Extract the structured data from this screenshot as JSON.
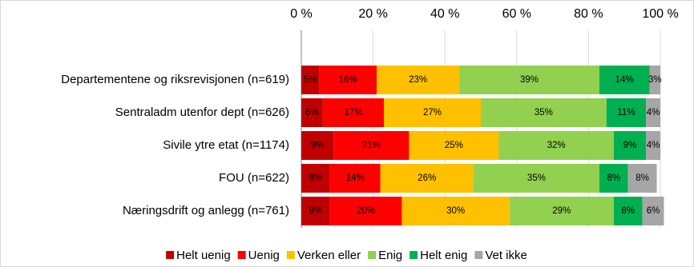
{
  "chart_data": {
    "type": "stacked-bar-horizontal",
    "categories": [
      "Departementene og riksrevisjonen (n=619)",
      "Sentraladm utenfor dept (n=626)",
      "Sivile ytre etat (n=1174)",
      "FOU (n=622)",
      "Næringsdrift og anlegg (n=761)"
    ],
    "series": [
      {
        "name": "Helt uenig",
        "color": "#c00000",
        "values": [
          5,
          6,
          9,
          8,
          8
        ],
        "value_labels": [
          "5%",
          "6%",
          "9%",
          "8%",
          "8%"
        ]
      },
      {
        "name": "Uenig",
        "color": "#ff0000",
        "values": [
          16,
          17,
          21,
          14,
          20
        ],
        "value_labels": [
          "16%",
          "17%",
          "21%",
          "14%",
          "20%"
        ]
      },
      {
        "name": "Verken eller",
        "color": "#ffc000",
        "values": [
          23,
          27,
          25,
          26,
          30
        ],
        "value_labels": [
          "23%",
          "27%",
          "25%",
          "26%",
          "30%"
        ]
      },
      {
        "name": "Enig",
        "color": "#92d050",
        "values": [
          39,
          35,
          32,
          35,
          29
        ],
        "value_labels": [
          "39%",
          "35%",
          "32%",
          "35%",
          "29%"
        ]
      },
      {
        "name": "Helt enig",
        "color": "#00b050",
        "values": [
          14,
          11,
          9,
          8,
          8
        ],
        "value_labels": [
          "14%",
          "11%",
          "9%",
          "8%",
          "8%"
        ]
      },
      {
        "name": "Vet ikke",
        "color": "#a6a6a6",
        "values": [
          3,
          4,
          4,
          8,
          6
        ],
        "value_labels": [
          "3%",
          "4%",
          "4%",
          "8%",
          "6%"
        ]
      }
    ],
    "xlim": [
      0,
      100
    ],
    "xticks": [
      {
        "value": 0,
        "label": "0 %"
      },
      {
        "value": 20,
        "label": "20 %"
      },
      {
        "value": 40,
        "label": "40 %"
      },
      {
        "value": 60,
        "label": "60 %"
      },
      {
        "value": 80,
        "label": "80 %"
      },
      {
        "value": 100,
        "label": "100 %"
      }
    ],
    "grid": true,
    "legend": "bottom"
  }
}
